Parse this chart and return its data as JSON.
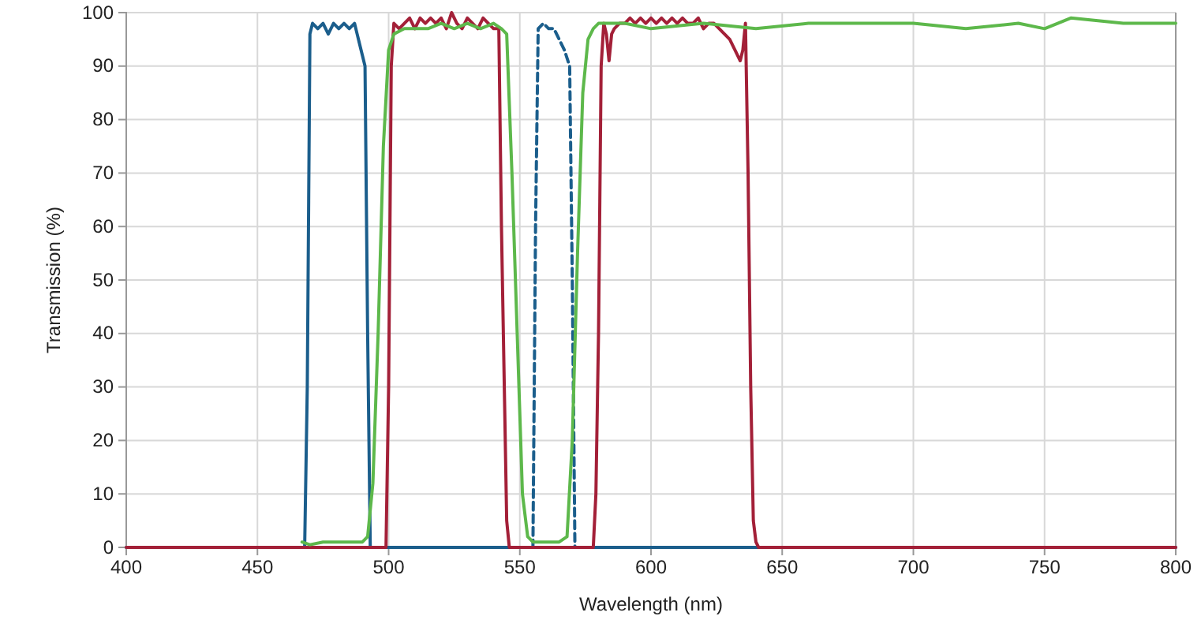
{
  "chart_data": {
    "type": "line",
    "xlabel": "Wavelength (nm)",
    "ylabel": "Transmission (%)",
    "xlim": [
      400,
      800
    ],
    "ylim": [
      0,
      100
    ],
    "xticks": [
      400,
      450,
      500,
      550,
      600,
      650,
      700,
      750,
      800
    ],
    "yticks": [
      0,
      10,
      20,
      30,
      40,
      50,
      60,
      70,
      80,
      90,
      100
    ],
    "grid": true,
    "marker": "none",
    "series": [
      {
        "color": "#1b5e8c",
        "x": [
          400,
          468,
          469,
          470,
          471,
          473,
          475,
          477,
          479,
          481,
          483,
          485,
          487,
          488,
          489,
          490,
          491,
          492,
          493,
          800
        ],
        "values": [
          0,
          0,
          30,
          96,
          98,
          97,
          98,
          96,
          98,
          97,
          98,
          97,
          98,
          96,
          94,
          92,
          90,
          40,
          0,
          0
        ]
      },
      {
        "color": "#1b5e8c",
        "line_style": "dashed",
        "x": [
          550,
          555,
          556,
          557,
          559,
          561,
          563,
          565,
          567,
          569,
          570,
          571,
          575
        ],
        "values": [
          0,
          0,
          60,
          97,
          98,
          97,
          97,
          95,
          93,
          90,
          50,
          0,
          0
        ]
      },
      {
        "color": "#a32038",
        "x": [
          400,
          499,
          500,
          501,
          502,
          504,
          506,
          508,
          510,
          512,
          514,
          516,
          518,
          520,
          522,
          524,
          526,
          528,
          530,
          532,
          534,
          536,
          538,
          540,
          542,
          543,
          545,
          546,
          578,
          579,
          580,
          581,
          582,
          583,
          584,
          585,
          586,
          588,
          590,
          592,
          594,
          596,
          598,
          600,
          602,
          604,
          606,
          608,
          610,
          612,
          614,
          616,
          618,
          620,
          622,
          624,
          626,
          628,
          630,
          632,
          634,
          635,
          636,
          637,
          638,
          639,
          640,
          641,
          800
        ],
        "values": [
          0,
          0,
          30,
          90,
          98,
          97,
          98,
          99,
          97,
          99,
          98,
          99,
          98,
          99,
          97,
          100,
          98,
          97,
          99,
          98,
          97,
          99,
          98,
          97,
          97,
          60,
          5,
          0,
          0,
          10,
          40,
          90,
          98,
          96,
          91,
          96,
          97,
          98,
          98,
          99,
          98,
          99,
          98,
          99,
          98,
          99,
          98,
          99,
          98,
          99,
          98,
          98,
          99,
          97,
          98,
          98,
          97,
          96,
          95,
          93,
          91,
          93,
          98,
          70,
          30,
          5,
          1,
          0,
          0
        ]
      },
      {
        "color": "#5db84b",
        "x": [
          467,
          470,
          475,
          480,
          485,
          490,
          492,
          494,
          496,
          498,
          500,
          502,
          506,
          510,
          515,
          520,
          525,
          530,
          535,
          540,
          543,
          545,
          547,
          549,
          551,
          553,
          555,
          560,
          565,
          568,
          570,
          572,
          574,
          576,
          578,
          580,
          590,
          600,
          620,
          640,
          660,
          680,
          700,
          720,
          740,
          750,
          760,
          780,
          800
        ],
        "values": [
          1,
          0.5,
          1,
          1,
          1,
          1,
          2,
          12,
          40,
          75,
          93,
          96,
          97,
          97,
          97,
          98,
          97,
          98,
          97,
          98,
          97,
          96,
          70,
          40,
          10,
          2,
          1,
          1,
          1,
          2,
          20,
          55,
          85,
          95,
          97,
          98,
          98,
          97,
          98,
          97,
          98,
          98,
          98,
          97,
          98,
          97,
          99,
          98,
          98
        ]
      }
    ]
  }
}
